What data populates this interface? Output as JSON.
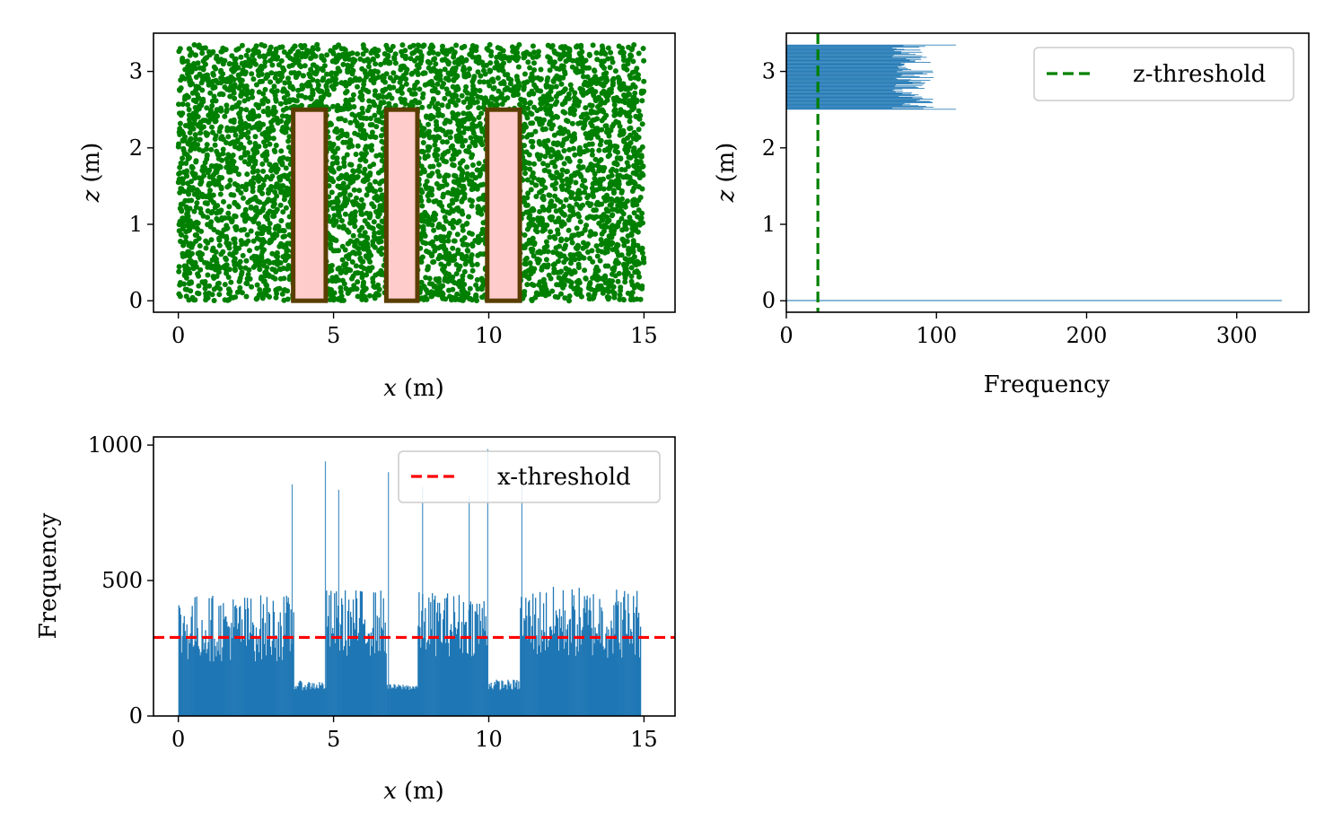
{
  "chart_data": [
    {
      "id": "scatter",
      "type": "scatter",
      "xlabel_var": "x",
      "xlabel_unit": "(m)",
      "ylabel_var": "z",
      "ylabel_unit": "(m)",
      "xlim": [
        -0.8,
        16
      ],
      "ylim": [
        -0.15,
        3.5
      ],
      "xticks": [
        0,
        5,
        10,
        15
      ],
      "yticks": [
        0,
        1,
        2,
        3
      ],
      "point_color": "#008000",
      "point_count": 4500,
      "domain_x": [
        0,
        15
      ],
      "domain_z": [
        0,
        3.35
      ],
      "obstacle_fill": "#ffcccc",
      "obstacle_edge": "#5a3e00",
      "obstacles": [
        {
          "x0": 3.7,
          "x1": 4.75,
          "z0": 0,
          "z1": 2.5
        },
        {
          "x0": 6.7,
          "x1": 7.7,
          "z0": 0,
          "z1": 2.5
        },
        {
          "x0": 9.95,
          "x1": 11.0,
          "z0": 0,
          "z1": 2.5
        }
      ]
    },
    {
      "id": "zhist",
      "type": "bar",
      "orientation": "horizontal",
      "xlabel": "Frequency",
      "ylabel_var": "z",
      "ylabel_unit": "(m)",
      "xlim": [
        0,
        348
      ],
      "ylim": [
        -0.15,
        3.5
      ],
      "xticks": [
        0,
        100,
        200,
        300
      ],
      "yticks": [
        0,
        1,
        2,
        3
      ],
      "bar_color": "#1f77b4",
      "band_z": [
        2.5,
        3.35
      ],
      "band_freq_range": [
        70,
        100
      ],
      "band_edge_max": 113,
      "base_bin_z": 0,
      "base_bin_freq": 330,
      "threshold_label": "z-threshold",
      "threshold_value": 21,
      "threshold_color": "#008000"
    },
    {
      "id": "xhist",
      "type": "bar",
      "orientation": "vertical",
      "xlabel_var": "x",
      "xlabel_unit": "(m)",
      "ylabel": "Frequency",
      "xlim": [
        -0.8,
        16
      ],
      "ylim": [
        0,
        1030
      ],
      "xticks": [
        0,
        5,
        10,
        15
      ],
      "yticks": [
        0,
        500,
        1000
      ],
      "bar_color": "#1f77b4",
      "x_range": [
        0,
        14.9
      ],
      "segments": [
        {
          "x0": 0,
          "x1": 3.7,
          "low": 200,
          "high": 450
        },
        {
          "x0": 3.7,
          "x1": 4.75,
          "low": 95,
          "high": 130
        },
        {
          "x0": 4.75,
          "x1": 6.7,
          "low": 220,
          "high": 470
        },
        {
          "x0": 6.7,
          "x1": 7.7,
          "low": 95,
          "high": 118
        },
        {
          "x0": 7.7,
          "x1": 9.95,
          "low": 220,
          "high": 460
        },
        {
          "x0": 9.95,
          "x1": 11.0,
          "low": 95,
          "high": 135
        },
        {
          "x0": 11.0,
          "x1": 14.9,
          "low": 210,
          "high": 480
        }
      ],
      "spikes": [
        {
          "x": 3.65,
          "v": 855
        },
        {
          "x": 4.72,
          "v": 940
        },
        {
          "x": 5.15,
          "v": 835
        },
        {
          "x": 6.75,
          "v": 900
        },
        {
          "x": 7.85,
          "v": 845
        },
        {
          "x": 9.35,
          "v": 810
        },
        {
          "x": 9.95,
          "v": 985
        },
        {
          "x": 11.05,
          "v": 860
        }
      ],
      "threshold_label": "x-threshold",
      "threshold_value": 290,
      "threshold_color": "#ff0000"
    }
  ]
}
